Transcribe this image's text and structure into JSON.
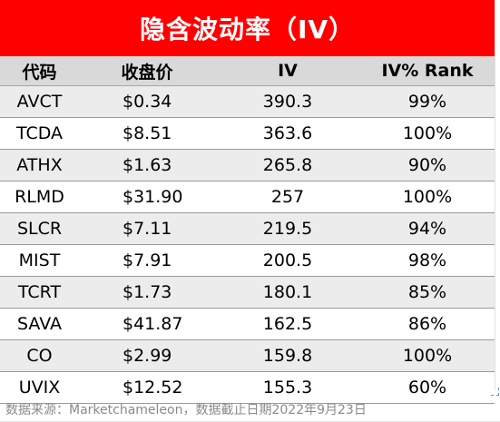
{
  "title": "隐含波动率（IV）",
  "colors": {
    "title_bg": "#ff0000",
    "title_text": "#ffffff",
    "header_bg": "#d9d9d9",
    "row_shade": "#ececec"
  },
  "columns": [
    "代码",
    "收盘价",
    "IV",
    "IV% Rank"
  ],
  "rows": [
    {
      "ticker": "AVCT",
      "price": "$0.34",
      "iv": "390.3",
      "rank": "99%"
    },
    {
      "ticker": "TCDA",
      "price": "$8.51",
      "iv": "363.6",
      "rank": "100%"
    },
    {
      "ticker": "ATHX",
      "price": "$1.63",
      "iv": "265.8",
      "rank": "90%"
    },
    {
      "ticker": "RLMD",
      "price": "$31.90",
      "iv": "257",
      "rank": "100%"
    },
    {
      "ticker": "SLCR",
      "price": "$7.11",
      "iv": "219.5",
      "rank": "94%"
    },
    {
      "ticker": "MIST",
      "price": "$7.91",
      "iv": "200.5",
      "rank": "98%"
    },
    {
      "ticker": "TCRT",
      "price": "$1.73",
      "iv": "180.1",
      "rank": "85%"
    },
    {
      "ticker": "SAVA",
      "price": "$41.87",
      "iv": "162.5",
      "rank": "86%"
    },
    {
      "ticker": "CO",
      "price": "$2.99",
      "iv": "159.8",
      "rank": "100%"
    },
    {
      "ticker": "UVIX",
      "price": "$12.52",
      "iv": "155.3",
      "rank": "60%"
    }
  ],
  "footnote": "数据来源：Marketchameleon，数据截止日期2022年9月23日"
}
